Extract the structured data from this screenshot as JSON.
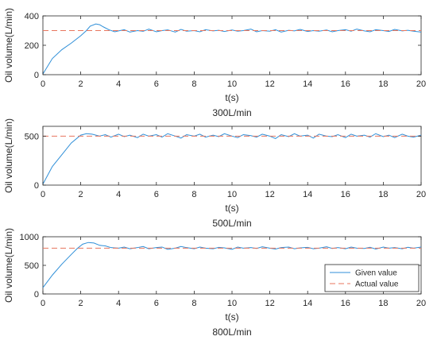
{
  "colors": {
    "given": "#2f8fd8",
    "actual": "#e8765e",
    "axis": "#262626"
  },
  "chart_data": [
    {
      "type": "line",
      "caption": "300L/min",
      "xlabel": "t(s)",
      "ylabel": "Oil volume(L/min)",
      "xlim": [
        0,
        20
      ],
      "ylim": [
        0,
        400
      ],
      "xticks": [
        0,
        2,
        4,
        6,
        8,
        10,
        12,
        14,
        16,
        18,
        20
      ],
      "yticks": [
        0,
        200,
        400
      ],
      "series": [
        {
          "style": "solid",
          "color_key": "given",
          "x": [
            0,
            0.5,
            1,
            1.5,
            2,
            2.3,
            2.5,
            2.8,
            3,
            3.2,
            3.5,
            3.8,
            4,
            4.3,
            4.6,
            5,
            5.3,
            5.6,
            6,
            6.3,
            6.6,
            7,
            7.3,
            7.6,
            8,
            8.3,
            8.6,
            9,
            9.3,
            9.6,
            10,
            10.3,
            10.6,
            11,
            11.3,
            11.6,
            12,
            12.3,
            12.6,
            13,
            13.3,
            13.6,
            14,
            14.3,
            14.6,
            15,
            15.3,
            15.6,
            16,
            16.3,
            16.6,
            17,
            17.3,
            17.6,
            18,
            18.3,
            18.6,
            19,
            19.3,
            19.6,
            20
          ],
          "y": [
            5,
            110,
            170,
            215,
            265,
            300,
            330,
            345,
            340,
            325,
            305,
            292,
            298,
            306,
            290,
            300,
            295,
            310,
            292,
            300,
            305,
            290,
            308,
            296,
            300,
            292,
            306,
            298,
            302,
            294,
            304,
            296,
            300,
            310,
            292,
            300,
            296,
            306,
            290,
            302,
            298,
            308,
            294,
            300,
            296,
            304,
            292,
            300,
            306,
            296,
            310,
            298,
            292,
            306,
            300,
            294,
            308,
            298,
            302,
            296,
            290
          ]
        },
        {
          "style": "dashed",
          "color_key": "actual",
          "x": [
            0,
            20
          ],
          "y": [
            300,
            300
          ]
        }
      ]
    },
    {
      "type": "line",
      "caption": "500L/min",
      "xlabel": "t(s)",
      "ylabel": "Oil volume(L/min)",
      "xlim": [
        0,
        20
      ],
      "ylim": [
        0,
        600
      ],
      "xticks": [
        0,
        2,
        4,
        6,
        8,
        10,
        12,
        14,
        16,
        18,
        20
      ],
      "yticks": [
        0,
        500
      ],
      "series": [
        {
          "style": "solid",
          "color_key": "given",
          "x": [
            0,
            0.5,
            1,
            1.5,
            2,
            2.3,
            2.6,
            3,
            3.3,
            3.6,
            4,
            4.3,
            4.6,
            5,
            5.3,
            5.6,
            6,
            6.3,
            6.6,
            7,
            7.3,
            7.6,
            8,
            8.3,
            8.6,
            9,
            9.3,
            9.6,
            10,
            10.3,
            10.6,
            11,
            11.3,
            11.6,
            12,
            12.3,
            12.6,
            13,
            13.3,
            13.6,
            14,
            14.3,
            14.6,
            15,
            15.3,
            15.6,
            16,
            16.3,
            16.6,
            17,
            17.3,
            17.6,
            18,
            18.3,
            18.6,
            19,
            19.3,
            19.6,
            20
          ],
          "y": [
            10,
            190,
            310,
            430,
            510,
            525,
            520,
            500,
            515,
            490,
            520,
            495,
            510,
            485,
            520,
            500,
            515,
            490,
            525,
            500,
            480,
            515,
            500,
            520,
            490,
            510,
            495,
            525,
            500,
            485,
            515,
            505,
            490,
            520,
            500,
            475,
            515,
            495,
            525,
            500,
            510,
            480,
            520,
            500,
            495,
            515,
            485,
            520,
            500,
            510,
            490,
            525,
            495,
            510,
            485,
            520,
            500,
            490,
            510
          ]
        },
        {
          "style": "dashed",
          "color_key": "actual",
          "x": [
            0,
            20
          ],
          "y": [
            500,
            500
          ]
        }
      ]
    },
    {
      "type": "line",
      "caption": "800L/min",
      "xlabel": "t(s)",
      "ylabel": "Oil volume(L/min)",
      "xlim": [
        0,
        20
      ],
      "ylim": [
        0,
        1000
      ],
      "xticks": [
        0,
        2,
        4,
        6,
        8,
        10,
        12,
        14,
        16,
        18,
        20
      ],
      "yticks": [
        0,
        500,
        1000
      ],
      "series": [
        {
          "style": "solid",
          "color_key": "given",
          "x": [
            0,
            0.5,
            1,
            1.5,
            1.8,
            2.1,
            2.4,
            2.7,
            3,
            3.3,
            3.6,
            4,
            4.3,
            4.6,
            5,
            5.3,
            5.6,
            6,
            6.3,
            6.6,
            7,
            7.3,
            7.6,
            8,
            8.3,
            8.6,
            9,
            9.3,
            9.6,
            10,
            10.3,
            10.6,
            11,
            11.3,
            11.6,
            12,
            12.3,
            12.6,
            13,
            13.3,
            13.6,
            14,
            14.3,
            14.6,
            15,
            15.3,
            15.6,
            16,
            16.3,
            16.6,
            17,
            17.3,
            17.6,
            18,
            18.3,
            18.6,
            19,
            19.3,
            19.6,
            20
          ],
          "y": [
            110,
            330,
            520,
            690,
            790,
            870,
            900,
            890,
            850,
            840,
            810,
            800,
            820,
            790,
            810,
            830,
            790,
            810,
            820,
            780,
            800,
            830,
            810,
            790,
            820,
            800,
            790,
            815,
            805,
            780,
            820,
            800,
            810,
            795,
            825,
            800,
            785,
            810,
            820,
            790,
            805,
            815,
            790,
            800,
            825,
            795,
            810,
            790,
            820,
            800,
            795,
            815,
            785,
            820,
            800,
            810,
            790,
            815,
            800,
            820
          ]
        },
        {
          "style": "dashed",
          "color_key": "actual",
          "x": [
            0,
            20
          ],
          "y": [
            800,
            800
          ]
        }
      ],
      "legend": {
        "position": "lower-right",
        "entries": [
          "Given value",
          "Actual value"
        ]
      }
    }
  ]
}
